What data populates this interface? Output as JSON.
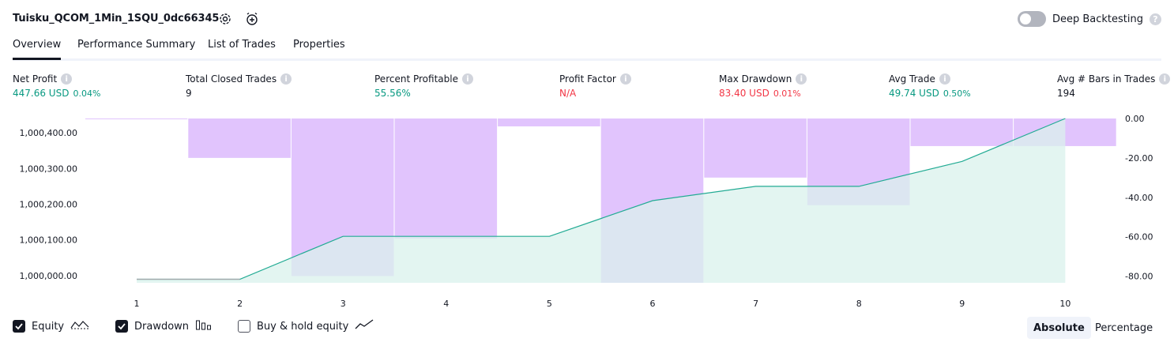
{
  "header": {
    "title": "Tuisku_QCOM_1Min_1SQU_0dc66345",
    "deep_backtesting_label": "Deep Backtesting",
    "deep_backtesting_on": false
  },
  "tabs": [
    {
      "label": "Overview",
      "active": true
    },
    {
      "label": "Performance Summary",
      "active": false
    },
    {
      "label": "List of Trades",
      "active": false
    },
    {
      "label": "Properties",
      "active": false
    }
  ],
  "stats": {
    "net_profit": {
      "label": "Net Profit",
      "value": "447.66 USD",
      "sub": "0.04%"
    },
    "total_closed_trades": {
      "label": "Total Closed Trades",
      "value": "9"
    },
    "percent_profitable": {
      "label": "Percent Profitable",
      "value": "55.56%"
    },
    "profit_factor": {
      "label": "Profit Factor",
      "value": "N/A"
    },
    "max_drawdown": {
      "label": "Max Drawdown",
      "value": "83.40 USD",
      "sub": "0.01%"
    },
    "avg_trade": {
      "label": "Avg Trade",
      "value": "49.74 USD",
      "sub": "0.50%"
    },
    "avg_bars": {
      "label": "Avg # Bars in Trades",
      "value": "194"
    }
  },
  "legend": {
    "equity": {
      "label": "Equity",
      "checked": true
    },
    "drawdown": {
      "label": "Drawdown",
      "checked": true
    },
    "buy_hold": {
      "label": "Buy & hold equity",
      "checked": false
    }
  },
  "mode": {
    "absolute": "Absolute",
    "percentage": "Percentage",
    "selected": "Absolute"
  },
  "colors": {
    "equity_line": "#22ab94",
    "equity_fill": "#daf2ec",
    "drawdown": "#e1c4fd",
    "positive": "#089981",
    "negative": "#f23645"
  },
  "chart_data": {
    "type": "area",
    "x": [
      1,
      2,
      3,
      4,
      5,
      6,
      7,
      8,
      9,
      10
    ],
    "series": [
      {
        "name": "Equity",
        "axis": "left",
        "values": [
          999990,
          999990,
          1000110,
          1000110,
          1000110,
          1000210,
          1000250,
          1000250,
          1000320,
          1000440
        ]
      },
      {
        "name": "Drawdown",
        "axis": "right",
        "type": "bar",
        "values": [
          0,
          -20,
          -80,
          -61,
          -4,
          -83.4,
          -30,
          -44,
          -14,
          -14
        ]
      }
    ],
    "y_left_ticks": [
      "1,000,400.00",
      "1,000,300.00",
      "1,000,200.00",
      "1,000,100.00",
      "1,000,000.00"
    ],
    "y_right_ticks": [
      "0.00",
      "-20.00",
      "-40.00",
      "-60.00",
      "-80.00"
    ],
    "x_ticks": [
      "1",
      "2",
      "3",
      "4",
      "5",
      "6",
      "7",
      "8",
      "9",
      "10"
    ],
    "ylim_left": [
      999980,
      1000440
    ],
    "ylim_right": [
      -83.4,
      0
    ]
  }
}
